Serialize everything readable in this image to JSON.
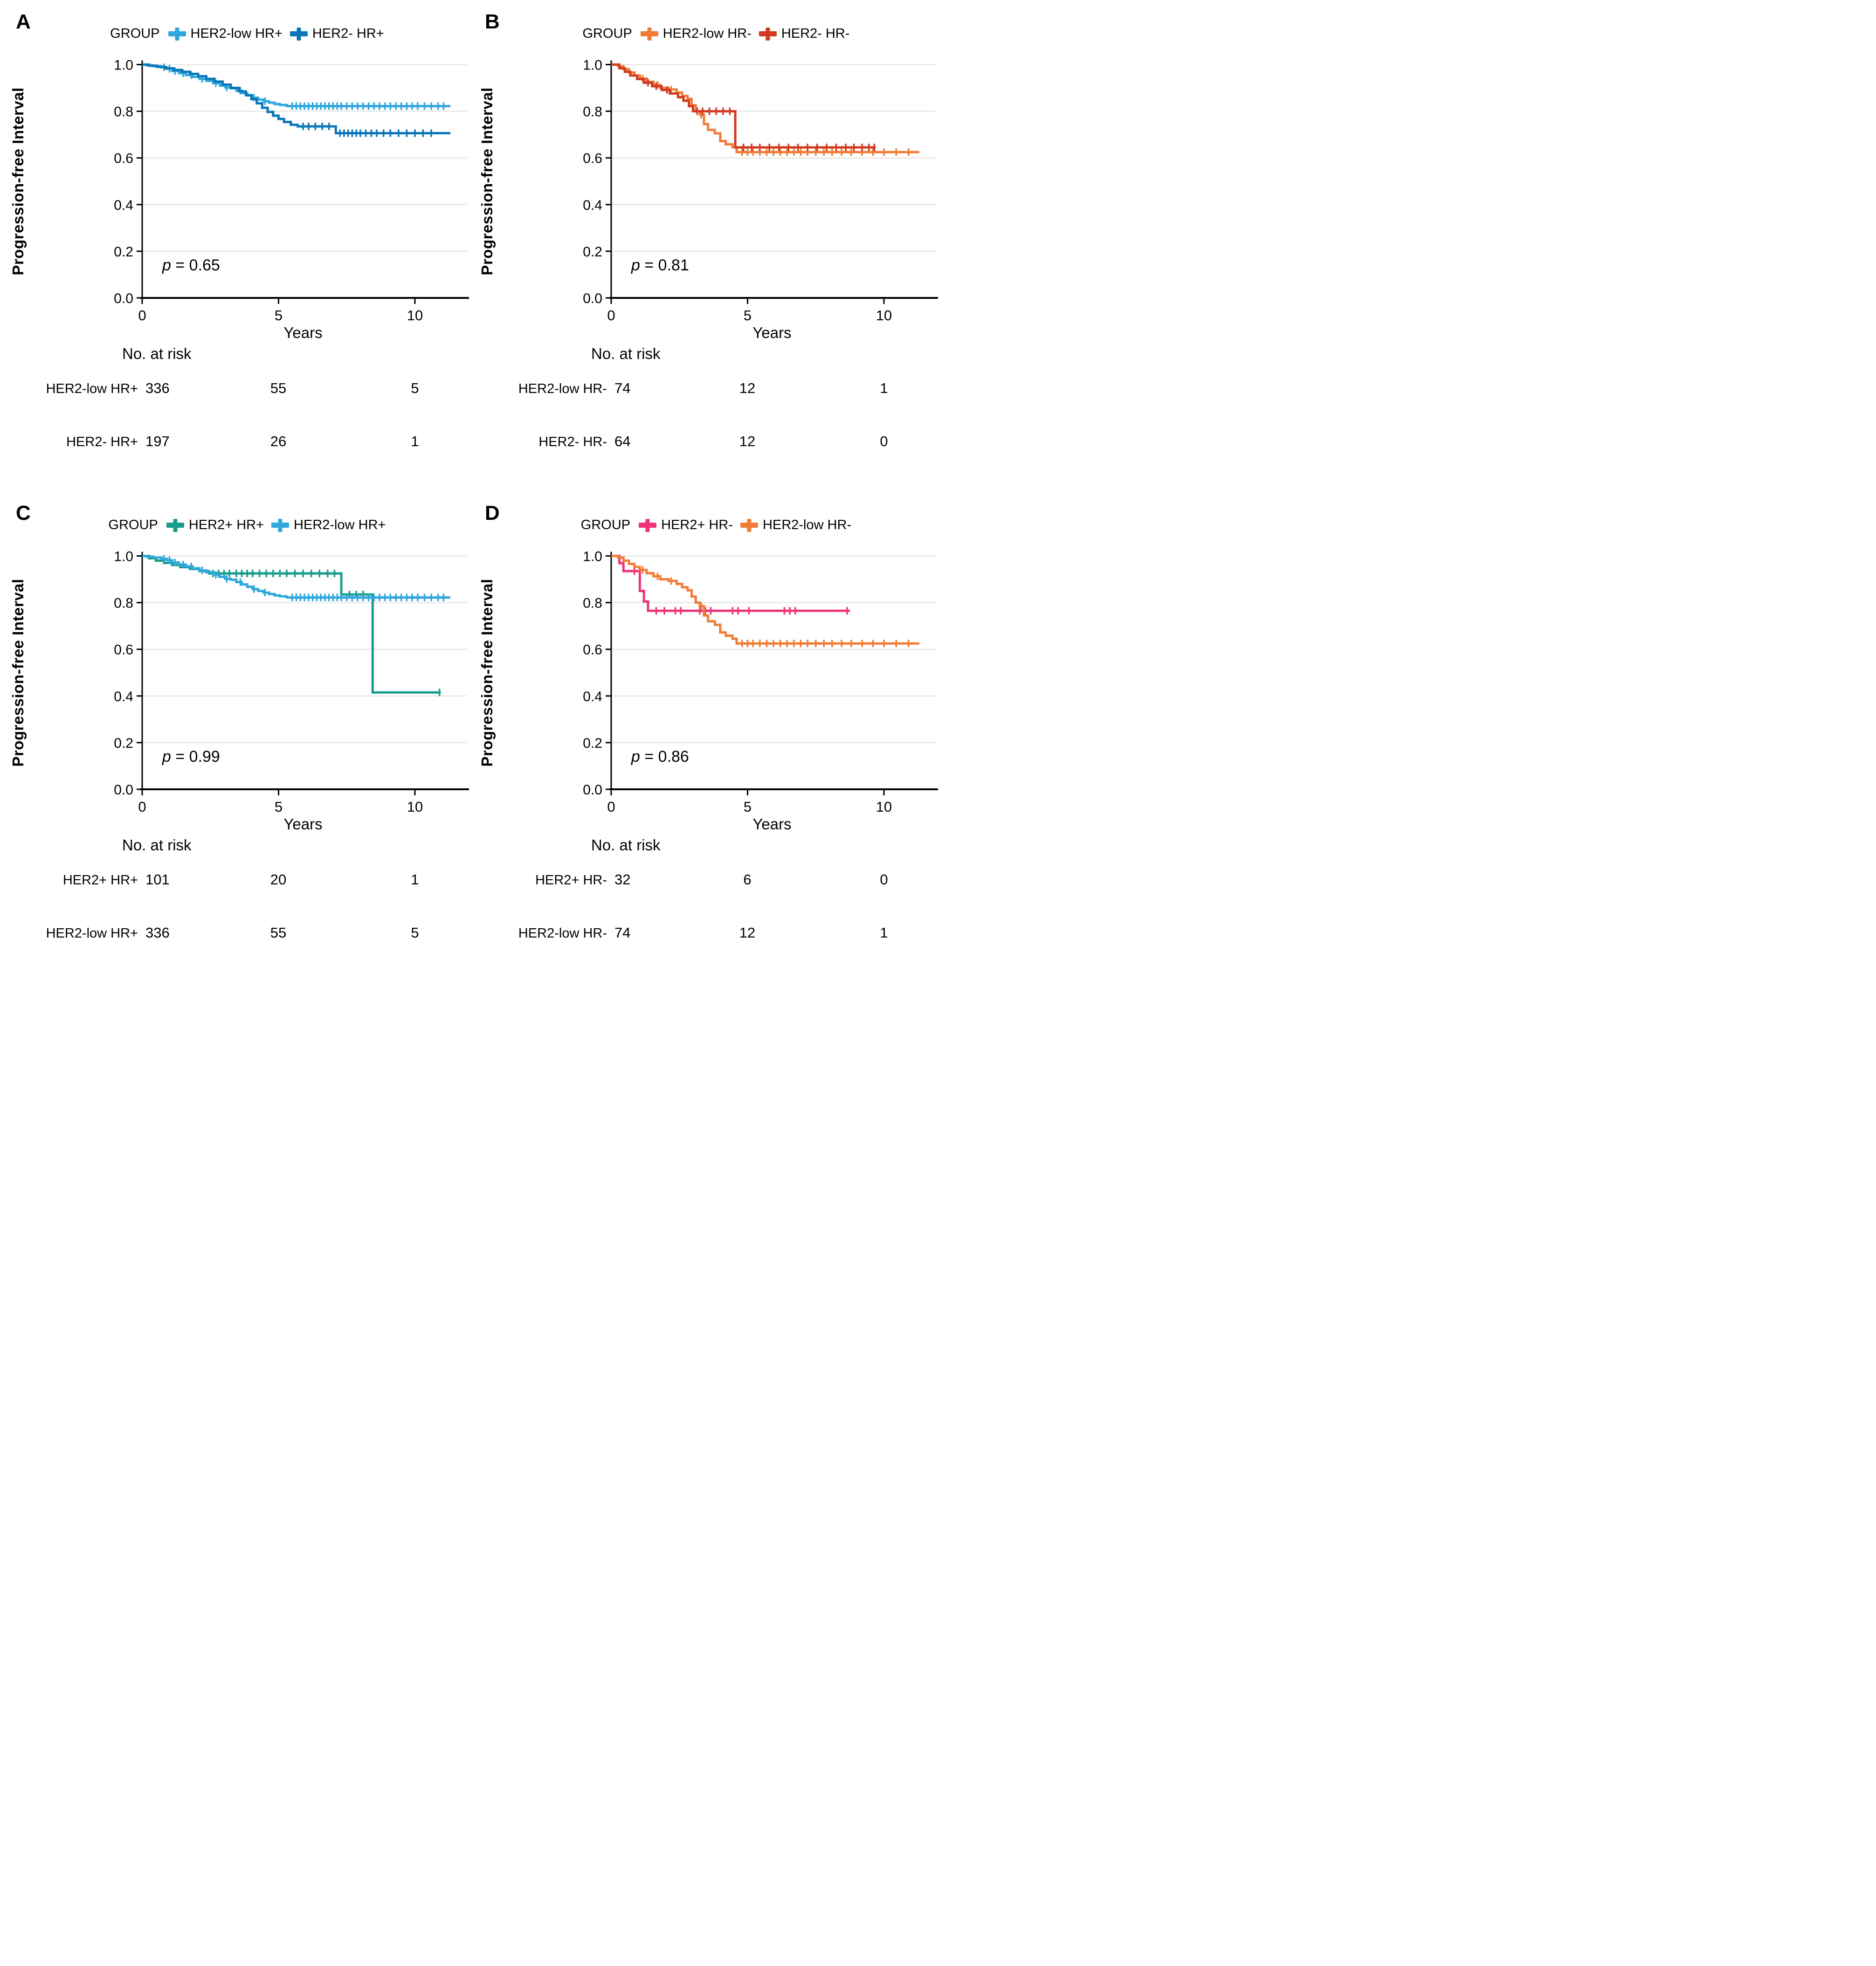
{
  "figure": {
    "ylabel": "Progression-free Interval",
    "xlabel": "Years",
    "risk_header": "No. at risk",
    "legend_title": "GROUP",
    "p_symbol": "p",
    "x_ticks": [
      0,
      5,
      10
    ],
    "y_ticks": [
      0,
      0.2,
      0.4,
      0.6,
      0.8,
      1
    ],
    "y_grid": [
      0.2,
      0.4,
      0.6,
      0.8,
      1.0
    ],
    "xmax": 11.5,
    "colors": {
      "her2_low_hr_pos": "#2fa7dc",
      "her2_neg_hr_pos": "#0b76b8",
      "her2_low_hr_neg": "#ef7d36",
      "her2_neg_hr_neg": "#d03b21",
      "her2_pos_hr_pos": "#169c8c",
      "her2_pos_hr_neg": "#ee3377",
      "gridline": "#e7e7e7",
      "axis": "#000000"
    }
  },
  "chart_data": [
    {
      "panel": "A",
      "type": "line",
      "subtype": "kaplan-meier",
      "title": "",
      "p_value": "0.65",
      "legend_title": "GROUP",
      "xlabel": "Years",
      "ylabel": "Progression-free Interval",
      "xlim": [
        0,
        11.5
      ],
      "ylim": [
        0,
        1
      ],
      "series": [
        {
          "name": "HER2-low HR+",
          "color": "#2fa7dc",
          "end": 11.3,
          "steps": [
            [
              0,
              1.0
            ],
            [
              0.15,
              0.997
            ],
            [
              0.4,
              0.993
            ],
            [
              0.7,
              0.988
            ],
            [
              0.9,
              0.982
            ],
            [
              1.1,
              0.972
            ],
            [
              1.35,
              0.963
            ],
            [
              1.6,
              0.955
            ],
            [
              1.85,
              0.947
            ],
            [
              2.1,
              0.938
            ],
            [
              2.35,
              0.93
            ],
            [
              2.6,
              0.92
            ],
            [
              2.85,
              0.91
            ],
            [
              3.05,
              0.902
            ],
            [
              3.25,
              0.898
            ],
            [
              3.45,
              0.888
            ],
            [
              3.65,
              0.878
            ],
            [
              3.85,
              0.868
            ],
            [
              4.05,
              0.858
            ],
            [
              4.25,
              0.85
            ],
            [
              4.45,
              0.843
            ],
            [
              4.65,
              0.837
            ],
            [
              4.85,
              0.831
            ],
            [
              5.05,
              0.827
            ],
            [
              5.3,
              0.822
            ]
          ],
          "censors": [
            0.8,
            1.0,
            1.2,
            1.5,
            1.8,
            2.2,
            2.7,
            3.1,
            3.6,
            4.1,
            4.5,
            5.5,
            5.65,
            5.8,
            5.95,
            6.1,
            6.25,
            6.4,
            6.55,
            6.7,
            6.85,
            7.0,
            7.15,
            7.3,
            7.5,
            7.7,
            7.9,
            8.1,
            8.3,
            8.5,
            8.7,
            8.9,
            9.1,
            9.3,
            9.5,
            9.7,
            9.9,
            10.1,
            10.35,
            10.6,
            10.85,
            11.05
          ],
          "risk": [
            336,
            55,
            5
          ]
        },
        {
          "name": "HER2- HR+",
          "color": "#0b76b8",
          "end": 11.3,
          "steps": [
            [
              0,
              1.0
            ],
            [
              0.25,
              0.995
            ],
            [
              0.55,
              0.99
            ],
            [
              0.85,
              0.984
            ],
            [
              1.15,
              0.977
            ],
            [
              1.45,
              0.969
            ],
            [
              1.75,
              0.96
            ],
            [
              2.05,
              0.95
            ],
            [
              2.35,
              0.939
            ],
            [
              2.65,
              0.927
            ],
            [
              2.95,
              0.914
            ],
            [
              3.25,
              0.9
            ],
            [
              3.55,
              0.885
            ],
            [
              3.8,
              0.869
            ],
            [
              4.0,
              0.852
            ],
            [
              4.2,
              0.834
            ],
            [
              4.4,
              0.815
            ],
            [
              4.6,
              0.797
            ],
            [
              4.8,
              0.781
            ],
            [
              5.0,
              0.767
            ],
            [
              5.2,
              0.754
            ],
            [
              5.45,
              0.742
            ],
            [
              5.7,
              0.735
            ],
            [
              7.1,
              0.706
            ]
          ],
          "censors": [
            5.9,
            6.1,
            6.35,
            6.6,
            6.85,
            7.25,
            7.4,
            7.55,
            7.7,
            7.85,
            8.0,
            8.2,
            8.4,
            8.6,
            8.85,
            9.1,
            9.4,
            9.7,
            10.0,
            10.3,
            10.6
          ],
          "risk": [
            197,
            26,
            1
          ]
        }
      ]
    },
    {
      "panel": "B",
      "type": "line",
      "subtype": "kaplan-meier",
      "title": "",
      "p_value": "0.81",
      "legend_title": "GROUP",
      "xlabel": "Years",
      "ylabel": "Progression-free Interval",
      "xlim": [
        0,
        11.5
      ],
      "ylim": [
        0,
        1
      ],
      "series": [
        {
          "name": "HER2-low HR-",
          "color": "#ef7d36",
          "end": 11.3,
          "steps": [
            [
              0,
              1.0
            ],
            [
              0.25,
              0.993
            ],
            [
              0.45,
              0.98
            ],
            [
              0.65,
              0.966
            ],
            [
              0.85,
              0.953
            ],
            [
              1.05,
              0.94
            ],
            [
              1.3,
              0.926
            ],
            [
              1.55,
              0.913
            ],
            [
              1.8,
              0.9
            ],
            [
              2.1,
              0.893
            ],
            [
              2.4,
              0.88
            ],
            [
              2.6,
              0.866
            ],
            [
              2.8,
              0.853
            ],
            [
              2.95,
              0.826
            ],
            [
              3.1,
              0.8
            ],
            [
              3.25,
              0.785
            ],
            [
              3.4,
              0.745
            ],
            [
              3.55,
              0.72
            ],
            [
              3.8,
              0.705
            ],
            [
              4.0,
              0.672
            ],
            [
              4.2,
              0.658
            ],
            [
              4.45,
              0.645
            ],
            [
              4.6,
              0.625
            ]
          ],
          "censors": [
            1.15,
            1.7,
            2.2,
            3.3,
            4.8,
            5.0,
            5.2,
            5.45,
            5.7,
            5.95,
            6.2,
            6.45,
            6.7,
            6.95,
            7.2,
            7.5,
            7.8,
            8.1,
            8.45,
            8.8,
            9.2,
            9.6,
            10.0,
            10.45,
            10.9
          ],
          "risk": [
            74,
            12,
            1
          ]
        },
        {
          "name": "HER2- HR-",
          "color": "#d03b21",
          "end": 9.7,
          "steps": [
            [
              0,
              1.0
            ],
            [
              0.3,
              0.984
            ],
            [
              0.5,
              0.969
            ],
            [
              0.7,
              0.953
            ],
            [
              0.95,
              0.938
            ],
            [
              1.2,
              0.922
            ],
            [
              1.5,
              0.907
            ],
            [
              1.85,
              0.891
            ],
            [
              2.15,
              0.876
            ],
            [
              2.45,
              0.86
            ],
            [
              2.65,
              0.845
            ],
            [
              2.85,
              0.822
            ],
            [
              3.0,
              0.8
            ],
            [
              4.55,
              0.645
            ]
          ],
          "censors": [
            1.35,
            1.65,
            2.05,
            3.15,
            3.35,
            3.6,
            3.85,
            4.1,
            4.35,
            4.85,
            5.15,
            5.45,
            5.8,
            6.15,
            6.5,
            6.85,
            7.2,
            7.55,
            7.9,
            8.25,
            8.6,
            8.9,
            9.2,
            9.45,
            9.65
          ],
          "risk": [
            64,
            12,
            0
          ]
        }
      ]
    },
    {
      "panel": "C",
      "type": "line",
      "subtype": "kaplan-meier",
      "title": "",
      "p_value": "0.99",
      "legend_title": "GROUP",
      "xlabel": "Years",
      "ylabel": "Progression-free Interval",
      "xlim": [
        0,
        11.5
      ],
      "ylim": [
        0,
        1
      ],
      "series": [
        {
          "name": "HER2+ HR+",
          "color": "#169c8c",
          "end": 10.95,
          "steps": [
            [
              0,
              1.0
            ],
            [
              0.25,
              0.99
            ],
            [
              0.5,
              0.98
            ],
            [
              0.8,
              0.97
            ],
            [
              1.1,
              0.961
            ],
            [
              1.4,
              0.952
            ],
            [
              1.75,
              0.944
            ],
            [
              2.1,
              0.935
            ],
            [
              2.45,
              0.925
            ],
            [
              7.3,
              0.835
            ],
            [
              8.45,
              0.415
            ]
          ],
          "censors": [
            2.6,
            2.8,
            3.0,
            3.2,
            3.45,
            3.65,
            3.85,
            4.05,
            4.3,
            4.55,
            4.8,
            5.05,
            5.3,
            5.6,
            5.9,
            6.2,
            6.5,
            6.8,
            7.05,
            7.6,
            7.85,
            8.1,
            10.9
          ],
          "risk": [
            101,
            20,
            1
          ]
        },
        {
          "name": "HER2-low HR+",
          "color": "#2fa7dc",
          "end": 11.3,
          "steps": [
            [
              0,
              1.0
            ],
            [
              0.15,
              0.997
            ],
            [
              0.4,
              0.993
            ],
            [
              0.7,
              0.988
            ],
            [
              0.9,
              0.982
            ],
            [
              1.1,
              0.972
            ],
            [
              1.35,
              0.963
            ],
            [
              1.6,
              0.955
            ],
            [
              1.85,
              0.947
            ],
            [
              2.1,
              0.938
            ],
            [
              2.35,
              0.93
            ],
            [
              2.6,
              0.92
            ],
            [
              2.85,
              0.91
            ],
            [
              3.05,
              0.902
            ],
            [
              3.25,
              0.898
            ],
            [
              3.45,
              0.888
            ],
            [
              3.65,
              0.878
            ],
            [
              3.85,
              0.868
            ],
            [
              4.05,
              0.858
            ],
            [
              4.25,
              0.85
            ],
            [
              4.45,
              0.843
            ],
            [
              4.65,
              0.837
            ],
            [
              4.85,
              0.831
            ],
            [
              5.05,
              0.827
            ],
            [
              5.3,
              0.822
            ]
          ],
          "censors": [
            0.8,
            1.0,
            1.2,
            1.5,
            1.8,
            2.2,
            2.7,
            3.1,
            3.6,
            4.1,
            4.5,
            5.5,
            5.65,
            5.8,
            5.95,
            6.1,
            6.25,
            6.4,
            6.55,
            6.7,
            6.85,
            7.0,
            7.15,
            7.3,
            7.5,
            7.7,
            7.9,
            8.1,
            8.3,
            8.5,
            8.7,
            8.9,
            9.1,
            9.3,
            9.5,
            9.7,
            9.9,
            10.1,
            10.35,
            10.6,
            10.85,
            11.05
          ],
          "risk": [
            336,
            55,
            5
          ]
        }
      ]
    },
    {
      "panel": "D",
      "type": "line",
      "subtype": "kaplan-meier",
      "title": "",
      "p_value": "0.86",
      "legend_title": "GROUP",
      "xlabel": "Years",
      "ylabel": "Progression-free Interval",
      "xlim": [
        0,
        11.5
      ],
      "ylim": [
        0,
        1
      ],
      "series": [
        {
          "name": "HER2+ HR-",
          "color": "#ee3377",
          "end": 8.75,
          "steps": [
            [
              0,
              1.0
            ],
            [
              0.3,
              0.969
            ],
            [
              0.45,
              0.935
            ],
            [
              1.05,
              0.85
            ],
            [
              1.2,
              0.805
            ],
            [
              1.35,
              0.765
            ]
          ],
          "censors": [
            0.85,
            1.65,
            1.95,
            2.35,
            2.55,
            3.25,
            3.45,
            3.65,
            4.45,
            4.65,
            5.05,
            6.35,
            6.55,
            6.75,
            8.65
          ],
          "risk": [
            32,
            6,
            0
          ]
        },
        {
          "name": "HER2-low HR-",
          "color": "#ef7d36",
          "end": 11.3,
          "steps": [
            [
              0,
              1.0
            ],
            [
              0.25,
              0.993
            ],
            [
              0.45,
              0.98
            ],
            [
              0.65,
              0.966
            ],
            [
              0.85,
              0.953
            ],
            [
              1.05,
              0.94
            ],
            [
              1.3,
              0.926
            ],
            [
              1.55,
              0.913
            ],
            [
              1.8,
              0.9
            ],
            [
              2.1,
              0.893
            ],
            [
              2.4,
              0.88
            ],
            [
              2.6,
              0.866
            ],
            [
              2.8,
              0.853
            ],
            [
              2.95,
              0.826
            ],
            [
              3.1,
              0.8
            ],
            [
              3.25,
              0.785
            ],
            [
              3.4,
              0.745
            ],
            [
              3.55,
              0.72
            ],
            [
              3.8,
              0.705
            ],
            [
              4.0,
              0.672
            ],
            [
              4.2,
              0.658
            ],
            [
              4.45,
              0.645
            ],
            [
              4.6,
              0.625
            ]
          ],
          "censors": [
            1.15,
            1.7,
            2.2,
            3.3,
            4.8,
            5.0,
            5.2,
            5.45,
            5.7,
            5.95,
            6.2,
            6.45,
            6.7,
            6.95,
            7.2,
            7.5,
            7.8,
            8.1,
            8.45,
            8.8,
            9.2,
            9.6,
            10.0,
            10.45,
            10.9
          ],
          "risk": [
            74,
            12,
            1
          ]
        }
      ]
    }
  ]
}
